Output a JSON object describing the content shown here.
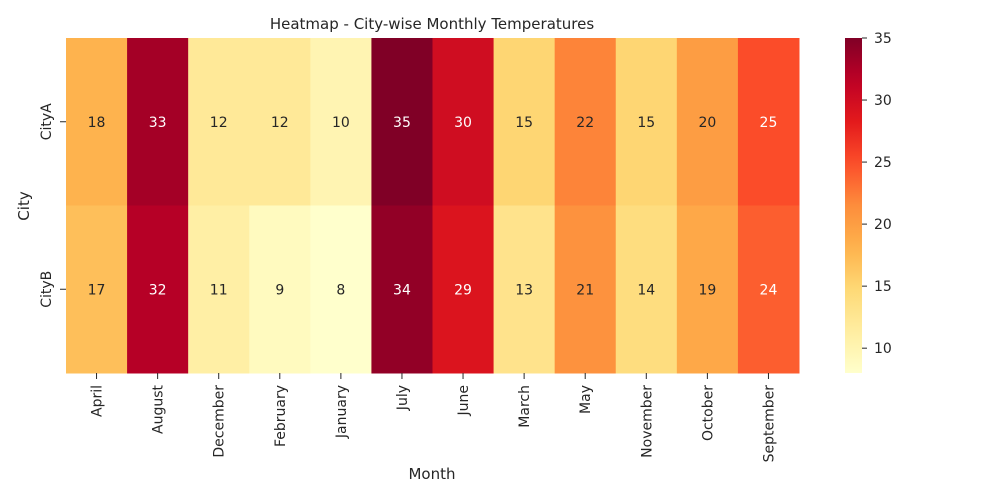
{
  "chart_data": {
    "type": "heatmap",
    "title": "Heatmap - City-wise Monthly Temperatures",
    "xlabel": "Month",
    "ylabel": "City",
    "x_categories": [
      "April",
      "August",
      "December",
      "February",
      "January",
      "July",
      "June",
      "March",
      "May",
      "November",
      "October",
      "September"
    ],
    "y_categories": [
      "CityA",
      "CityB"
    ],
    "values": [
      [
        18,
        33,
        12,
        12,
        10,
        35,
        30,
        15,
        22,
        15,
        20,
        25
      ],
      [
        17,
        32,
        11,
        9,
        8,
        34,
        29,
        13,
        21,
        14,
        19,
        24
      ]
    ],
    "colormap": "YlOrRd",
    "vmin": 8,
    "vmax": 35,
    "colorbar_ticks": [
      10,
      15,
      20,
      25,
      30,
      35
    ],
    "annotated": true
  }
}
